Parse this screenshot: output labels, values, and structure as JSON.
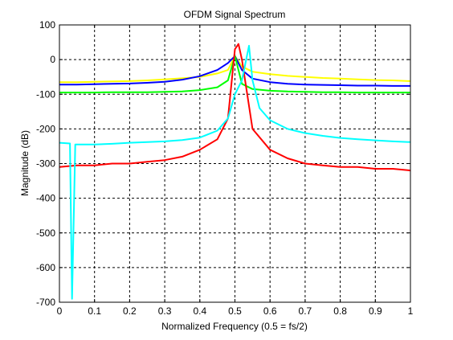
{
  "chart_data": {
    "type": "line",
    "title": "OFDM Signal Spectrum",
    "xlabel": "Normalized Frequency (0.5 = fs/2)",
    "ylabel": "Magnitude (dB)",
    "xlim": [
      0,
      1
    ],
    "ylim": [
      -700,
      100
    ],
    "xticks": [
      0,
      0.1,
      0.2,
      0.3,
      0.4,
      0.5,
      0.6,
      0.7,
      0.8,
      0.9,
      1
    ],
    "yticks": [
      100,
      0,
      -100,
      -200,
      -300,
      -400,
      -500,
      -600,
      -700
    ],
    "xtick_labels": [
      "0",
      "0.1",
      "0.2",
      "0.3",
      "0.4",
      "0.5",
      "0.6",
      "0.7",
      "0.8",
      "0.9",
      "1"
    ],
    "ytick_labels": [
      "100",
      "0",
      "-100",
      "-200",
      "-300",
      "-400",
      "-500",
      "-600",
      "-700"
    ],
    "grid": true,
    "series": [
      {
        "color": "#ffff00",
        "x": [
          0,
          0.05,
          0.1,
          0.15,
          0.2,
          0.25,
          0.3,
          0.35,
          0.4,
          0.45,
          0.48,
          0.5,
          0.52,
          0.55,
          0.6,
          0.65,
          0.7,
          0.75,
          0.8,
          0.85,
          0.9,
          0.95,
          1
        ],
        "y": [
          -65,
          -65,
          -64,
          -63,
          -62,
          -60,
          -57,
          -54,
          -50,
          -40,
          -30,
          10,
          -20,
          -35,
          -42,
          -47,
          -50,
          -53,
          -55,
          -57,
          -59,
          -60,
          -62
        ]
      },
      {
        "color": "#0000ff",
        "x": [
          0,
          0.05,
          0.1,
          0.15,
          0.2,
          0.25,
          0.3,
          0.35,
          0.4,
          0.45,
          0.48,
          0.5,
          0.52,
          0.55,
          0.6,
          0.65,
          0.7,
          0.75,
          0.8,
          0.85,
          0.9,
          0.95,
          1
        ],
        "y": [
          -72,
          -72,
          -71,
          -70,
          -69,
          -67,
          -64,
          -58,
          -48,
          -30,
          -10,
          10,
          -30,
          -55,
          -65,
          -70,
          -72,
          -73,
          -74,
          -75,
          -75,
          -76,
          -76
        ]
      },
      {
        "color": "#00ff00",
        "x": [
          0,
          0.05,
          0.1,
          0.15,
          0.2,
          0.25,
          0.3,
          0.35,
          0.4,
          0.45,
          0.48,
          0.5,
          0.52,
          0.55,
          0.6,
          0.65,
          0.7,
          0.75,
          0.8,
          0.85,
          0.9,
          0.95,
          1
        ],
        "y": [
          -95,
          -95,
          -95,
          -94,
          -94,
          -94,
          -93,
          -92,
          -88,
          -80,
          -60,
          10,
          -70,
          -85,
          -90,
          -92,
          -93,
          -94,
          -94,
          -95,
          -95,
          -95,
          -95
        ]
      },
      {
        "color": "#ff0000",
        "x": [
          0,
          0.05,
          0.1,
          0.15,
          0.2,
          0.25,
          0.3,
          0.35,
          0.4,
          0.45,
          0.48,
          0.5,
          0.51,
          0.52,
          0.55,
          0.6,
          0.65,
          0.7,
          0.75,
          0.8,
          0.85,
          0.9,
          0.95,
          1
        ],
        "y": [
          -310,
          -305,
          -305,
          -300,
          -300,
          -295,
          -290,
          -280,
          -260,
          -230,
          -170,
          30,
          45,
          0,
          -200,
          -260,
          -285,
          -300,
          -305,
          -310,
          -310,
          -315,
          -315,
          -320
        ]
      },
      {
        "color": "#00ffff",
        "x": [
          0,
          0.03,
          0.036,
          0.045,
          0.1,
          0.15,
          0.2,
          0.25,
          0.3,
          0.35,
          0.4,
          0.45,
          0.48,
          0.5,
          0.52,
          0.54,
          0.55,
          0.57,
          0.6,
          0.65,
          0.7,
          0.75,
          0.8,
          0.85,
          0.9,
          0.95,
          1
        ],
        "y": [
          -240,
          -242,
          -690,
          -245,
          -245,
          -243,
          -240,
          -238,
          -236,
          -232,
          -225,
          -205,
          -170,
          -100,
          -60,
          40,
          -60,
          -140,
          -175,
          -200,
          -212,
          -220,
          -226,
          -230,
          -233,
          -236,
          -238
        ]
      }
    ]
  }
}
